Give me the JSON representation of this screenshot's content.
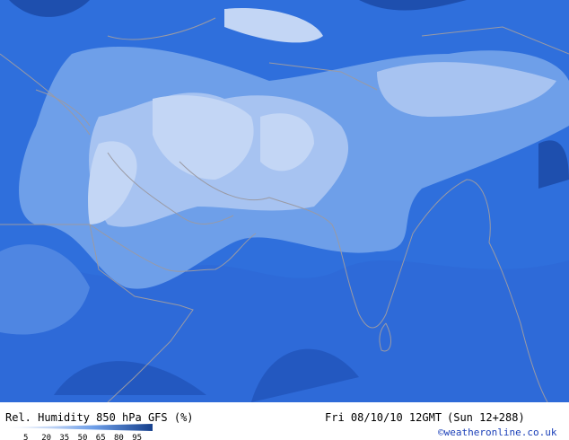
{
  "title": "Rel. Humidity 850 hPa GFS (%)",
  "valid_time": "Fri 08/10/10 12GMT",
  "forecast": "(Sun 12+288)",
  "credit": "©weatheronline.co.uk",
  "legend": {
    "values": [
      5,
      20,
      35,
      50,
      65,
      80,
      95
    ]
  }
}
